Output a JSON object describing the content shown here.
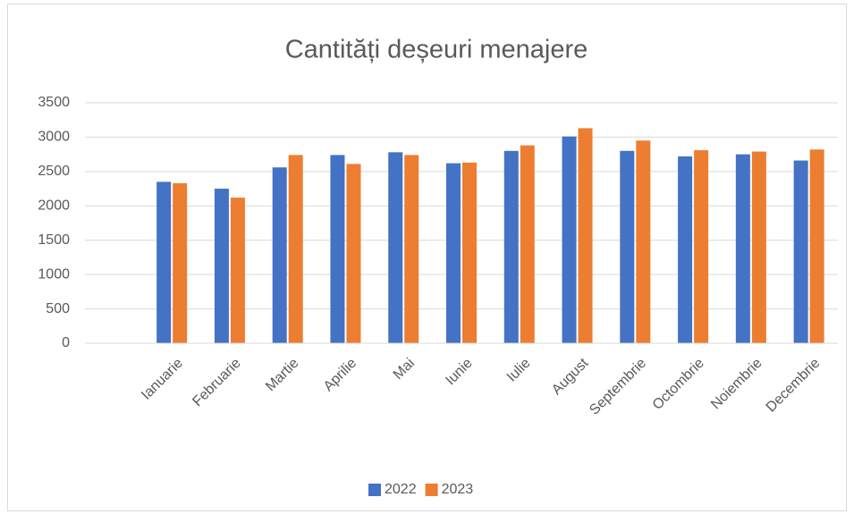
{
  "chart_data": {
    "type": "bar",
    "title": "Cantități deșeuri menajere",
    "categories": [
      null,
      "Ianuarie",
      "Februarie",
      "Martie",
      "Aprilie",
      "Mai",
      "Iunie",
      "Iulie",
      "August",
      "Septembrie",
      "Octombrie",
      "Noiembrie",
      "Decembrie"
    ],
    "series": [
      {
        "name": "2022",
        "color": "#4472c4",
        "values": [
          null,
          2350,
          2250,
          2560,
          2740,
          2780,
          2620,
          2800,
          3010,
          2800,
          2720,
          2750,
          2660
        ]
      },
      {
        "name": "2023",
        "color": "#ed7d31",
        "values": [
          null,
          2330,
          2120,
          2740,
          2610,
          2740,
          2630,
          2880,
          3130,
          2950,
          2810,
          2790,
          2820
        ]
      }
    ],
    "ylim": [
      0,
      3500
    ],
    "yticks": [
      0,
      500,
      1000,
      1500,
      2000,
      2500,
      3000,
      3500
    ],
    "grid": true,
    "legend": "bottom"
  }
}
